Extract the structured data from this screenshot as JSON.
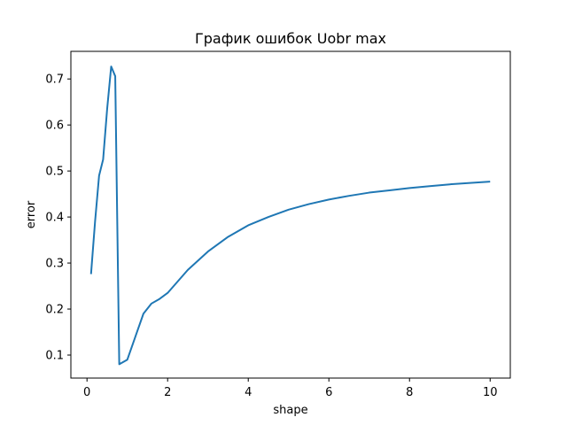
{
  "chart_data": {
    "type": "line",
    "title": "График ошибок Uobr max",
    "xlabel": "shape",
    "ylabel": "error",
    "xlim": [
      -0.4,
      10.5
    ],
    "ylim": [
      0.05,
      0.76
    ],
    "xticks": [
      0,
      2,
      4,
      6,
      8,
      10
    ],
    "xtick_labels": [
      "0",
      "2",
      "4",
      "6",
      "8",
      "10"
    ],
    "yticks": [
      0.1,
      0.2,
      0.3,
      0.4,
      0.5,
      0.6,
      0.7
    ],
    "ytick_labels": [
      "0.1",
      "0.2",
      "0.3",
      "0.4",
      "0.5",
      "0.6",
      "0.7"
    ],
    "grid": false,
    "legend": "none",
    "series": [
      {
        "color": "#1f77b4",
        "x": [
          0.1,
          0.2,
          0.3,
          0.4,
          0.5,
          0.6,
          0.7,
          0.8,
          1.0,
          1.2,
          1.4,
          1.6,
          1.8,
          2.0,
          2.5,
          3.0,
          3.5,
          4.0,
          4.5,
          5.0,
          5.5,
          6.0,
          6.5,
          7.0,
          7.5,
          8.0,
          8.5,
          9.0,
          9.5,
          10.0
        ],
        "y": [
          0.276,
          0.39,
          0.49,
          0.525,
          0.635,
          0.727,
          0.706,
          0.08,
          0.09,
          0.14,
          0.19,
          0.212,
          0.222,
          0.235,
          0.285,
          0.325,
          0.357,
          0.382,
          0.4,
          0.416,
          0.428,
          0.438,
          0.446,
          0.453,
          0.458,
          0.463,
          0.467,
          0.471,
          0.474,
          0.477
        ]
      }
    ]
  }
}
